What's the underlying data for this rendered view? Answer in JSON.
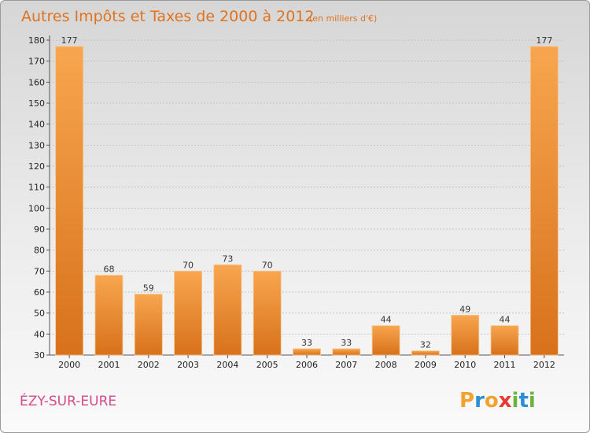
{
  "chart_data": {
    "type": "bar",
    "title": "Autres Impôts et Taxes de 2000 à 2012",
    "subtitle": "(en milliers d'€)",
    "categories": [
      "2000",
      "2001",
      "2002",
      "2003",
      "2004",
      "2005",
      "2006",
      "2007",
      "2008",
      "2009",
      "2010",
      "2011",
      "2012"
    ],
    "values": [
      177,
      68,
      59,
      70,
      73,
      70,
      33,
      33,
      44,
      32,
      49,
      44,
      177
    ],
    "ylim": [
      30,
      180
    ],
    "yticks": [
      "30",
      "40",
      "50",
      "60",
      "70",
      "80",
      "90",
      "100",
      "110",
      "120",
      "130",
      "140",
      "150",
      "160",
      "170",
      "180"
    ],
    "grid": true,
    "bar_color": "#f0963a",
    "label": "ÉZY-SUR-EURE"
  },
  "branding": {
    "logo_letters": [
      "P",
      "r",
      "o",
      "x",
      "i",
      "t",
      "i"
    ],
    "logo_colors": [
      "#f2a22e",
      "#2a8fd6",
      "#f2a22e",
      "#e63b2e",
      "#6db33f",
      "#2a8fd6",
      "#6db33f"
    ]
  }
}
